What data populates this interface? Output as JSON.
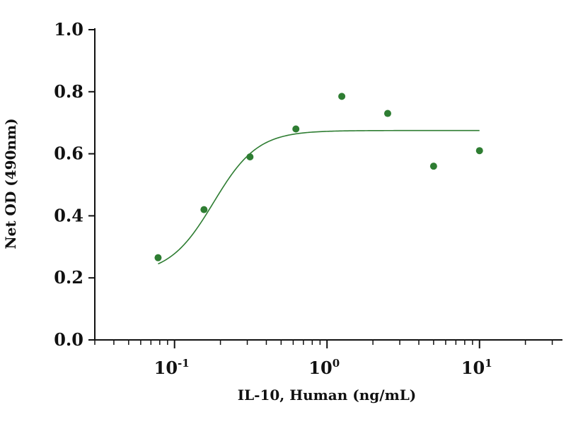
{
  "chart_data": {
    "type": "scatter",
    "xlabel": "IL-10, Human (ng/mL)",
    "ylabel": "Net OD (490nm)",
    "x_scale": "log",
    "xlim": [
      0.03,
      35
    ],
    "ylim": [
      0,
      1.0
    ],
    "y_ticks": [
      0.0,
      0.2,
      0.4,
      0.6,
      0.8,
      1.0
    ],
    "y_tick_labels": [
      "0.0",
      "0.2",
      "0.4",
      "0.6",
      "0.8",
      "1.0"
    ],
    "x_ticks": [
      {
        "value": 0.1,
        "base": "10",
        "exp": "-1"
      },
      {
        "value": 1,
        "base": "10",
        "exp": "0"
      },
      {
        "value": 10,
        "base": "10",
        "exp": "1"
      }
    ],
    "grid": false,
    "legend": false,
    "color": "#2e7d32",
    "series": [
      {
        "x": [
          0.078,
          0.156,
          0.3125,
          0.625,
          1.25,
          2.5,
          5,
          10
        ],
        "y": [
          0.265,
          0.42,
          0.59,
          0.68,
          0.785,
          0.73,
          0.56,
          0.61
        ]
      }
    ],
    "fit": {
      "model": "4PL",
      "bottom": 0.21,
      "top": 0.675,
      "ec50": 0.18,
      "hill": 3.0,
      "x_range": [
        0.078,
        10
      ]
    }
  }
}
